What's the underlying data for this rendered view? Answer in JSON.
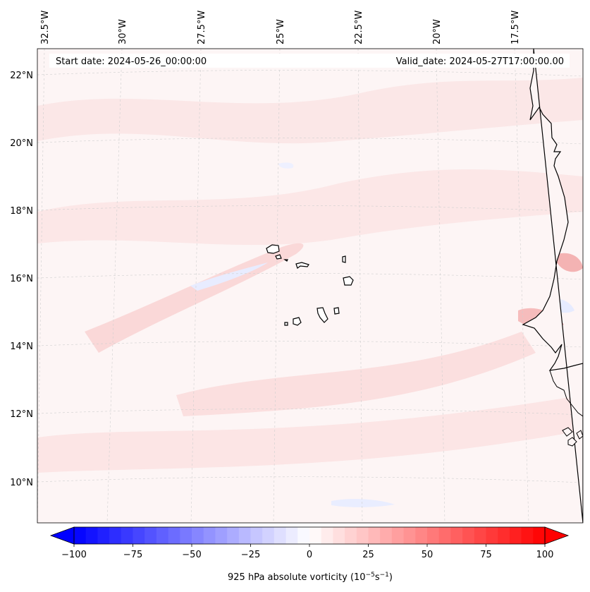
{
  "map": {
    "start_date": "Start date: 2024-05-26_00:00:00",
    "valid_date": "Valid_date: 2024-05-27T17:00:00.00",
    "lon_labels": [
      "32.5°W",
      "30°W",
      "27.5°W",
      "25°W",
      "22.5°W",
      "20°W",
      "17.5°W"
    ],
    "lat_labels": [
      "22°N",
      "20°N",
      "18°N",
      "16°N",
      "14°N",
      "12°N",
      "10°N"
    ],
    "field": "925 hPa absolute vorticity",
    "colors": {
      "negative": "#0000ff",
      "neutral": "#ffffff",
      "positive": "#ff0000",
      "weak_positive": "#fdf0f0",
      "moderate_positive": "#fbdcdc",
      "weak_negative": "#eef0ff",
      "coastline": "#000000",
      "gridline": "#c8c8c8"
    }
  },
  "colorbar": {
    "min": -100,
    "max": 100,
    "ticks": [
      "−100",
      "−75",
      "−50",
      "−25",
      "0",
      "25",
      "50",
      "75",
      "100"
    ],
    "label_main": "925 hPa absolute vorticity (10",
    "label_exp1": "−5",
    "label_mid": "s",
    "label_exp2": "−1",
    "label_end": ")",
    "extend": "both"
  }
}
